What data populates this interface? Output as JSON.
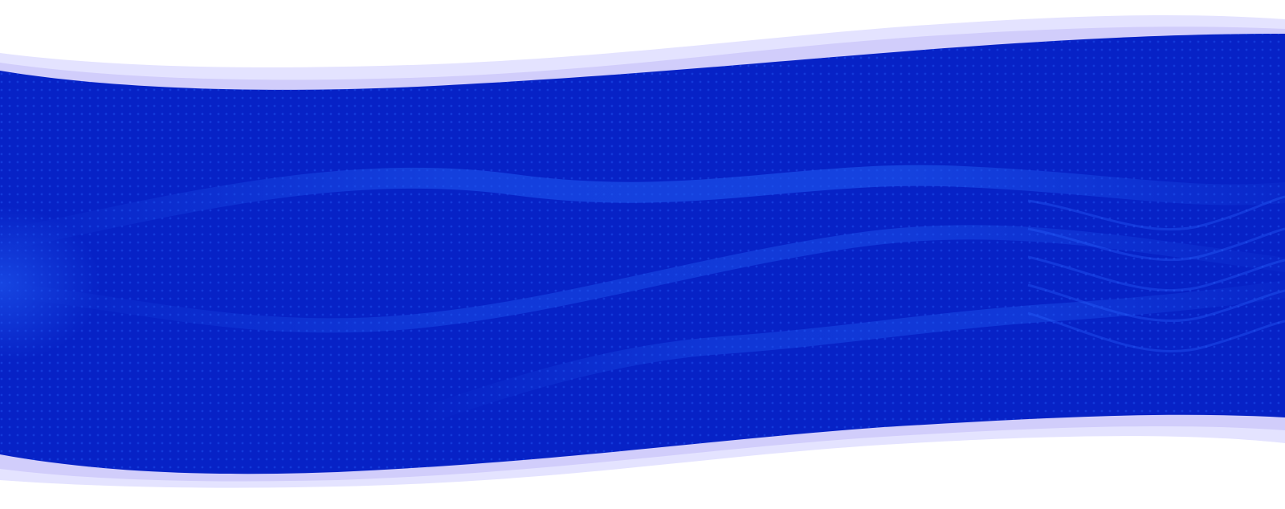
{
  "colors": {
    "background": "#ffffff",
    "band_fill": "#0722c6",
    "band_highlight": "#1f58f0",
    "dot_color": "#2a63ff",
    "halo_outer": "#e4e3ff",
    "halo_inner": "#d1cdfb"
  },
  "decor": {
    "pattern_name": "dotted-wave-mesh"
  }
}
